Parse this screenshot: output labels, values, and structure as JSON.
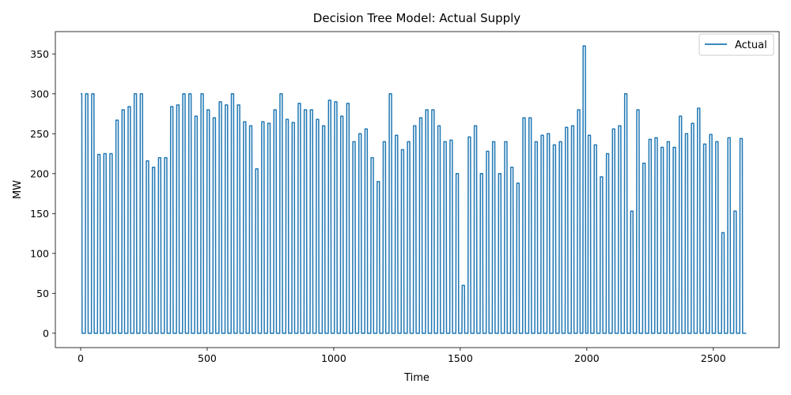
{
  "chart_data": {
    "type": "line",
    "title": "Decision Tree Model: Actual Supply",
    "xlabel": "Time",
    "ylabel": "MW",
    "xlim": [
      -100,
      2760
    ],
    "ylim": [
      -18,
      378
    ],
    "xticks": [
      0,
      500,
      1000,
      1500,
      2000,
      2500
    ],
    "yticks": [
      0,
      50,
      100,
      150,
      200,
      250,
      300,
      350
    ],
    "grid": false,
    "legend": {
      "position": "top-right",
      "entries": [
        "Actual"
      ]
    },
    "series": [
      {
        "name": "Actual",
        "color": "#1f77b4",
        "pulse_width": 9,
        "x_start": 0,
        "x_end": 2630,
        "peaks": [
          {
            "x": 0,
            "y": 300
          },
          {
            "x": 24,
            "y": 300
          },
          {
            "x": 48,
            "y": 300
          },
          {
            "x": 72,
            "y": 224
          },
          {
            "x": 96,
            "y": 225
          },
          {
            "x": 120,
            "y": 225
          },
          {
            "x": 144,
            "y": 267
          },
          {
            "x": 168,
            "y": 280
          },
          {
            "x": 192,
            "y": 284
          },
          {
            "x": 216,
            "y": 300
          },
          {
            "x": 240,
            "y": 300
          },
          {
            "x": 264,
            "y": 216
          },
          {
            "x": 288,
            "y": 208
          },
          {
            "x": 312,
            "y": 220
          },
          {
            "x": 336,
            "y": 220
          },
          {
            "x": 360,
            "y": 284
          },
          {
            "x": 384,
            "y": 286
          },
          {
            "x": 408,
            "y": 300
          },
          {
            "x": 432,
            "y": 300
          },
          {
            "x": 456,
            "y": 272
          },
          {
            "x": 480,
            "y": 300
          },
          {
            "x": 504,
            "y": 280
          },
          {
            "x": 528,
            "y": 270
          },
          {
            "x": 552,
            "y": 290
          },
          {
            "x": 576,
            "y": 286
          },
          {
            "x": 600,
            "y": 300
          },
          {
            "x": 624,
            "y": 286
          },
          {
            "x": 648,
            "y": 265
          },
          {
            "x": 672,
            "y": 260
          },
          {
            "x": 696,
            "y": 206
          },
          {
            "x": 720,
            "y": 265
          },
          {
            "x": 744,
            "y": 263
          },
          {
            "x": 768,
            "y": 280
          },
          {
            "x": 792,
            "y": 300
          },
          {
            "x": 816,
            "y": 268
          },
          {
            "x": 840,
            "y": 264
          },
          {
            "x": 864,
            "y": 288
          },
          {
            "x": 888,
            "y": 280
          },
          {
            "x": 912,
            "y": 280
          },
          {
            "x": 936,
            "y": 268
          },
          {
            "x": 960,
            "y": 260
          },
          {
            "x": 984,
            "y": 292
          },
          {
            "x": 1008,
            "y": 290
          },
          {
            "x": 1032,
            "y": 272
          },
          {
            "x": 1056,
            "y": 288
          },
          {
            "x": 1080,
            "y": 240
          },
          {
            "x": 1104,
            "y": 250
          },
          {
            "x": 1128,
            "y": 256
          },
          {
            "x": 1152,
            "y": 220
          },
          {
            "x": 1176,
            "y": 190
          },
          {
            "x": 1200,
            "y": 240
          },
          {
            "x": 1224,
            "y": 300
          },
          {
            "x": 1248,
            "y": 248
          },
          {
            "x": 1272,
            "y": 230
          },
          {
            "x": 1296,
            "y": 240
          },
          {
            "x": 1320,
            "y": 260
          },
          {
            "x": 1344,
            "y": 270
          },
          {
            "x": 1368,
            "y": 280
          },
          {
            "x": 1392,
            "y": 280
          },
          {
            "x": 1416,
            "y": 260
          },
          {
            "x": 1440,
            "y": 240
          },
          {
            "x": 1464,
            "y": 242
          },
          {
            "x": 1488,
            "y": 200
          },
          {
            "x": 1512,
            "y": 60
          },
          {
            "x": 1536,
            "y": 246
          },
          {
            "x": 1560,
            "y": 260
          },
          {
            "x": 1584,
            "y": 200
          },
          {
            "x": 1608,
            "y": 228
          },
          {
            "x": 1632,
            "y": 240
          },
          {
            "x": 1656,
            "y": 200
          },
          {
            "x": 1680,
            "y": 240
          },
          {
            "x": 1704,
            "y": 208
          },
          {
            "x": 1728,
            "y": 188
          },
          {
            "x": 1752,
            "y": 270
          },
          {
            "x": 1776,
            "y": 270
          },
          {
            "x": 1800,
            "y": 240
          },
          {
            "x": 1824,
            "y": 248
          },
          {
            "x": 1848,
            "y": 250
          },
          {
            "x": 1872,
            "y": 236
          },
          {
            "x": 1896,
            "y": 240
          },
          {
            "x": 1920,
            "y": 258
          },
          {
            "x": 1944,
            "y": 260
          },
          {
            "x": 1968,
            "y": 280
          },
          {
            "x": 1990,
            "y": 360
          },
          {
            "x": 2010,
            "y": 248
          },
          {
            "x": 2034,
            "y": 236
          },
          {
            "x": 2058,
            "y": 196
          },
          {
            "x": 2082,
            "y": 225
          },
          {
            "x": 2106,
            "y": 256
          },
          {
            "x": 2130,
            "y": 260
          },
          {
            "x": 2154,
            "y": 300
          },
          {
            "x": 2178,
            "y": 153
          },
          {
            "x": 2202,
            "y": 280
          },
          {
            "x": 2226,
            "y": 213
          },
          {
            "x": 2250,
            "y": 243
          },
          {
            "x": 2274,
            "y": 245
          },
          {
            "x": 2298,
            "y": 233
          },
          {
            "x": 2322,
            "y": 240
          },
          {
            "x": 2346,
            "y": 233
          },
          {
            "x": 2370,
            "y": 272
          },
          {
            "x": 2394,
            "y": 250
          },
          {
            "x": 2418,
            "y": 263
          },
          {
            "x": 2442,
            "y": 282
          },
          {
            "x": 2466,
            "y": 237
          },
          {
            "x": 2490,
            "y": 249
          },
          {
            "x": 2514,
            "y": 240
          },
          {
            "x": 2538,
            "y": 126
          },
          {
            "x": 2562,
            "y": 245
          },
          {
            "x": 2586,
            "y": 153
          },
          {
            "x": 2610,
            "y": 244
          }
        ]
      }
    ]
  }
}
